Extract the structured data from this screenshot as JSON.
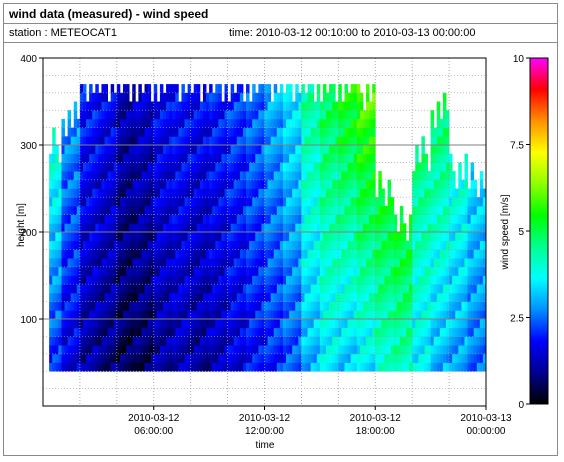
{
  "header": {
    "title": "wind data (measured) - wind speed",
    "station": "station : METEOCAT1",
    "time_range": "time: 2010-03-12 00:10:00 to 2010-03-13 00:00:00"
  },
  "chart_data": {
    "type": "heatmap",
    "xlabel": "time",
    "ylabel": "height [m]",
    "colorbar_label": "wind speed [m/s]",
    "xlim_hours": [
      0,
      24
    ],
    "ylim": [
      0,
      400
    ],
    "x_ticks": [
      {
        "hours": 6,
        "line1": "2010-03-12",
        "line2": "06:00:00"
      },
      {
        "hours": 12,
        "line1": "2010-03-12",
        "line2": "12:00:00"
      },
      {
        "hours": 18,
        "line1": "2010-03-12",
        "line2": "18:00:00"
      },
      {
        "hours": 24,
        "line1": "2010-03-13",
        "line2": "00:00:00"
      }
    ],
    "y_ticks": [
      100,
      200,
      300,
      400
    ],
    "colorbar_range": [
      0,
      10
    ],
    "colorbar_ticks": [
      "0",
      "2.5",
      "5",
      "7.5",
      "10"
    ],
    "colormap": [
      "#000000",
      "#000090",
      "#0000ff",
      "#0090ff",
      "#00ffff",
      "#00ff90",
      "#00ff00",
      "#90ff00",
      "#ffff00",
      "#ff9000",
      "#ff0000",
      "#ff00ff"
    ],
    "grid": true,
    "height_bins": [
      40,
      50,
      60,
      70,
      80,
      90,
      100,
      110,
      120,
      130,
      140,
      150,
      160,
      170,
      180,
      190,
      200,
      210,
      220,
      230,
      240,
      250,
      260,
      270,
      280,
      290,
      300,
      310,
      320,
      330,
      340,
      350,
      360
    ],
    "time_bins_hours": [
      0,
      1,
      2,
      3,
      4,
      5,
      6,
      7,
      8,
      9,
      10,
      11,
      12,
      13,
      14,
      15,
      16,
      17,
      18,
      19,
      20,
      21,
      22,
      23
    ],
    "wind_speed_profile": [
      {
        "hour": 0,
        "top_m": 290,
        "low_mps": 2.0,
        "high_mps": 4.5
      },
      {
        "hour": 1,
        "top_m": 320,
        "low_mps": 1.5,
        "high_mps": 3.0
      },
      {
        "hour": 2,
        "top_m": 360,
        "low_mps": 1.0,
        "high_mps": 2.0
      },
      {
        "hour": 3,
        "top_m": 360,
        "low_mps": 0.8,
        "high_mps": 1.8
      },
      {
        "hour": 4,
        "top_m": 360,
        "low_mps": 0.5,
        "high_mps": 1.2
      },
      {
        "hour": 5,
        "top_m": 360,
        "low_mps": 0.6,
        "high_mps": 1.4
      },
      {
        "hour": 6,
        "top_m": 360,
        "low_mps": 1.0,
        "high_mps": 1.8
      },
      {
        "hour": 7,
        "top_m": 360,
        "low_mps": 1.2,
        "high_mps": 1.9
      },
      {
        "hour": 8,
        "top_m": 360,
        "low_mps": 1.0,
        "high_mps": 1.8
      },
      {
        "hour": 9,
        "top_m": 360,
        "low_mps": 1.2,
        "high_mps": 2.0
      },
      {
        "hour": 10,
        "top_m": 360,
        "low_mps": 1.5,
        "high_mps": 2.2
      },
      {
        "hour": 11,
        "top_m": 360,
        "low_mps": 1.8,
        "high_mps": 2.5
      },
      {
        "hour": 12,
        "top_m": 360,
        "low_mps": 2.0,
        "high_mps": 3.0
      },
      {
        "hour": 13,
        "top_m": 360,
        "low_mps": 2.3,
        "high_mps": 3.5
      },
      {
        "hour": 14,
        "top_m": 360,
        "low_mps": 3.0,
        "high_mps": 4.5
      },
      {
        "hour": 15,
        "top_m": 360,
        "low_mps": 3.5,
        "high_mps": 5.0
      },
      {
        "hour": 16,
        "top_m": 360,
        "low_mps": 3.2,
        "high_mps": 5.5
      },
      {
        "hour": 17,
        "top_m": 350,
        "low_mps": 3.5,
        "high_mps": 6.0
      },
      {
        "hour": 18,
        "top_m": 240,
        "low_mps": 4.0,
        "high_mps": 6.0
      },
      {
        "hour": 19,
        "top_m": 200,
        "low_mps": 4.2,
        "high_mps": 6.3
      },
      {
        "hour": 20,
        "top_m": 280,
        "low_mps": 3.5,
        "high_mps": 5.0
      },
      {
        "hour": 21,
        "top_m": 330,
        "low_mps": 3.0,
        "high_mps": 5.0
      },
      {
        "hour": 22,
        "top_m": 260,
        "low_mps": 2.8,
        "high_mps": 4.5
      },
      {
        "hour": 23,
        "top_m": 250,
        "low_mps": 2.5,
        "high_mps": 3.8
      }
    ]
  }
}
